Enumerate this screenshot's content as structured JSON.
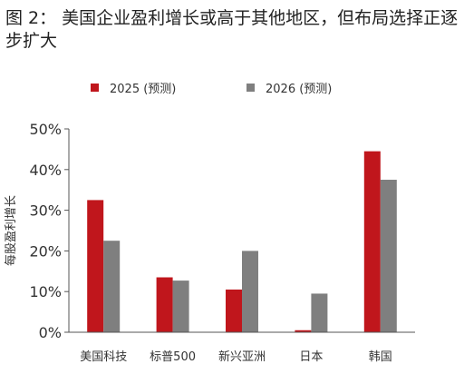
{
  "title": "图 2： 美国企业盈利增长或高于其他地区，但布局选择正逐步扩大",
  "colors": {
    "series_2025": "#c0161c",
    "series_2026": "#7f7f7f",
    "axis": "#555555"
  },
  "chart_data": {
    "type": "bar",
    "categories": [
      "美国科技",
      "标普500",
      "新兴亚洲",
      "日本",
      "韩国"
    ],
    "series": [
      {
        "name": "2025 (预测)",
        "values": [
          32.5,
          13.5,
          10.5,
          0.5,
          44.5
        ]
      },
      {
        "name": "2026 (预测)",
        "values": [
          22.5,
          12.7,
          20,
          9.5,
          37.5
        ]
      }
    ],
    "ylabel": "每股盈利增长",
    "ylim": [
      0,
      50
    ],
    "yticks": [
      "0%",
      "10%",
      "20%",
      "30%",
      "40%",
      "50%"
    ],
    "grid": false,
    "legend": "top"
  }
}
